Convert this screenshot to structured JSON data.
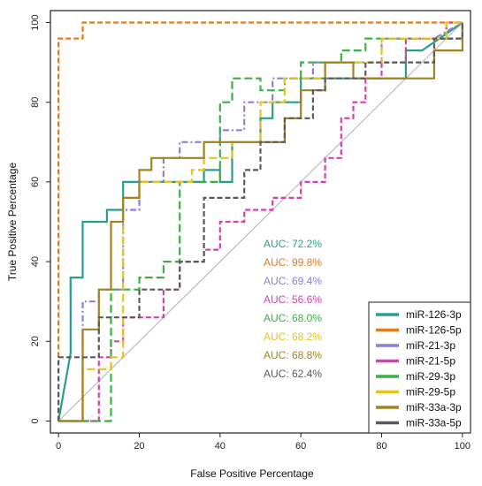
{
  "chart_data": {
    "type": "line",
    "xlabel": "False Positive Percentage",
    "ylabel": "True Positive Percentage",
    "xlim": [
      -2,
      102
    ],
    "ylim": [
      -3,
      103
    ],
    "x_ticks": [
      0,
      20,
      40,
      60,
      80,
      100
    ],
    "y_ticks": [
      0,
      20,
      40,
      60,
      80,
      100
    ],
    "x_tick_labels": [
      "0",
      "20",
      "40",
      "60",
      "80",
      "100"
    ],
    "y_tick_labels": [
      "0",
      "20",
      "40",
      "60",
      "80",
      "100"
    ],
    "legend_position": "bottom-right",
    "series": [
      {
        "name": "miR-126-3p",
        "color": "#2a9d8f",
        "dash": "solid",
        "auc_label": "AUC: 72.2%",
        "points": [
          [
            0,
            0
          ],
          [
            3,
            17
          ],
          [
            3,
            36
          ],
          [
            6,
            36
          ],
          [
            6,
            50
          ],
          [
            12,
            50
          ],
          [
            12,
            53
          ],
          [
            16,
            53
          ],
          [
            16,
            60
          ],
          [
            36,
            60
          ],
          [
            36,
            63
          ],
          [
            40,
            63
          ],
          [
            40,
            60
          ],
          [
            43,
            60
          ],
          [
            43,
            70
          ],
          [
            50,
            70
          ],
          [
            50,
            76
          ],
          [
            53,
            76
          ],
          [
            53,
            80
          ],
          [
            60,
            80
          ],
          [
            60,
            86
          ],
          [
            86,
            86
          ],
          [
            86,
            93
          ],
          [
            90,
            93
          ],
          [
            100,
            100
          ]
        ]
      },
      {
        "name": "miR-126-5p",
        "color": "#e07b1f",
        "dash": "dashed",
        "auc_label": "AUC: 99.8%",
        "points": [
          [
            0,
            0
          ],
          [
            0,
            96
          ],
          [
            6,
            96
          ],
          [
            6,
            100
          ],
          [
            100,
            100
          ]
        ]
      },
      {
        "name": "miR-21-3p",
        "color": "#8b7fd6",
        "dash": "dotdash",
        "auc_label": "AUC: 69.4%",
        "points": [
          [
            0,
            0
          ],
          [
            6,
            0
          ],
          [
            6,
            30
          ],
          [
            10,
            30
          ],
          [
            10,
            33
          ],
          [
            16,
            33
          ],
          [
            16,
            53
          ],
          [
            20,
            53
          ],
          [
            20,
            60
          ],
          [
            26,
            60
          ],
          [
            26,
            66
          ],
          [
            30,
            66
          ],
          [
            30,
            70
          ],
          [
            40,
            70
          ],
          [
            40,
            73
          ],
          [
            46,
            73
          ],
          [
            46,
            80
          ],
          [
            53,
            80
          ],
          [
            53,
            86
          ],
          [
            63,
            86
          ],
          [
            63,
            90
          ],
          [
            80,
            90
          ],
          [
            80,
            96
          ],
          [
            93,
            96
          ],
          [
            100,
            100
          ]
        ]
      },
      {
        "name": "miR-21-5p",
        "color": "#d63fb0",
        "dash": "dashed",
        "auc_label": "AUC: 56.6%",
        "points": [
          [
            0,
            0
          ],
          [
            10,
            0
          ],
          [
            10,
            16
          ],
          [
            13,
            16
          ],
          [
            13,
            20
          ],
          [
            16,
            20
          ],
          [
            16,
            26
          ],
          [
            26,
            26
          ],
          [
            26,
            33
          ],
          [
            30,
            33
          ],
          [
            30,
            40
          ],
          [
            36,
            40
          ],
          [
            36,
            43
          ],
          [
            40,
            43
          ],
          [
            40,
            50
          ],
          [
            46,
            50
          ],
          [
            46,
            53
          ],
          [
            53,
            53
          ],
          [
            53,
            56
          ],
          [
            60,
            56
          ],
          [
            60,
            60
          ],
          [
            66,
            60
          ],
          [
            66,
            66
          ],
          [
            70,
            66
          ],
          [
            70,
            76
          ],
          [
            73,
            76
          ],
          [
            73,
            80
          ],
          [
            76,
            80
          ],
          [
            76,
            86
          ],
          [
            80,
            86
          ],
          [
            80,
            90
          ],
          [
            86,
            90
          ],
          [
            86,
            96
          ],
          [
            96,
            96
          ],
          [
            96,
            100
          ],
          [
            100,
            100
          ]
        ]
      },
      {
        "name": "miR-29-3p",
        "color": "#3cb043",
        "dash": "longdash",
        "auc_label": "AUC: 68.0%",
        "points": [
          [
            0,
            0
          ],
          [
            13,
            0
          ],
          [
            13,
            33
          ],
          [
            20,
            33
          ],
          [
            20,
            36
          ],
          [
            26,
            36
          ],
          [
            26,
            40
          ],
          [
            30,
            40
          ],
          [
            30,
            60
          ],
          [
            40,
            60
          ],
          [
            40,
            80
          ],
          [
            43,
            80
          ],
          [
            43,
            86
          ],
          [
            50,
            86
          ],
          [
            50,
            83
          ],
          [
            56,
            83
          ],
          [
            56,
            86
          ],
          [
            60,
            86
          ],
          [
            60,
            90
          ],
          [
            70,
            90
          ],
          [
            70,
            93
          ],
          [
            76,
            93
          ],
          [
            76,
            96
          ],
          [
            100,
            96
          ],
          [
            100,
            100
          ]
        ]
      },
      {
        "name": "miR-29-5p",
        "color": "#e8c21e",
        "dash": "longdash",
        "auc_label": "AUC: 68.2%",
        "points": [
          [
            0,
            0
          ],
          [
            6,
            0
          ],
          [
            6,
            13
          ],
          [
            13,
            13
          ],
          [
            13,
            16
          ],
          [
            16,
            16
          ],
          [
            16,
            56
          ],
          [
            20,
            56
          ],
          [
            20,
            60
          ],
          [
            33,
            60
          ],
          [
            33,
            63
          ],
          [
            36,
            63
          ],
          [
            36,
            66
          ],
          [
            43,
            66
          ],
          [
            43,
            70
          ],
          [
            50,
            70
          ],
          [
            50,
            80
          ],
          [
            56,
            80
          ],
          [
            56,
            86
          ],
          [
            66,
            86
          ],
          [
            66,
            90
          ],
          [
            80,
            90
          ],
          [
            80,
            96
          ],
          [
            96,
            96
          ],
          [
            96,
            100
          ],
          [
            100,
            100
          ]
        ]
      },
      {
        "name": "miR-33a-3p",
        "color": "#a3821f",
        "dash": "solid",
        "auc_label": "AUC: 68.8%",
        "points": [
          [
            0,
            0
          ],
          [
            6,
            0
          ],
          [
            6,
            23
          ],
          [
            10,
            23
          ],
          [
            10,
            33
          ],
          [
            13,
            33
          ],
          [
            13,
            50
          ],
          [
            16,
            50
          ],
          [
            16,
            56
          ],
          [
            20,
            56
          ],
          [
            20,
            63
          ],
          [
            23,
            63
          ],
          [
            23,
            66
          ],
          [
            36,
            66
          ],
          [
            36,
            70
          ],
          [
            56,
            70
          ],
          [
            56,
            76
          ],
          [
            60,
            76
          ],
          [
            60,
            83
          ],
          [
            66,
            83
          ],
          [
            66,
            90
          ],
          [
            73,
            90
          ],
          [
            73,
            86
          ],
          [
            93,
            86
          ],
          [
            93,
            93
          ],
          [
            100,
            93
          ],
          [
            100,
            100
          ]
        ]
      },
      {
        "name": "miR-33a-5p",
        "color": "#5a5a5a",
        "dash": "dashed",
        "auc_label": "AUC: 62.4%",
        "points": [
          [
            0,
            0
          ],
          [
            0,
            16
          ],
          [
            10,
            16
          ],
          [
            10,
            26
          ],
          [
            20,
            26
          ],
          [
            20,
            33
          ],
          [
            30,
            33
          ],
          [
            30,
            40
          ],
          [
            36,
            40
          ],
          [
            36,
            56
          ],
          [
            46,
            56
          ],
          [
            46,
            63
          ],
          [
            50,
            63
          ],
          [
            50,
            70
          ],
          [
            56,
            70
          ],
          [
            56,
            76
          ],
          [
            63,
            76
          ],
          [
            63,
            83
          ],
          [
            66,
            83
          ],
          [
            66,
            86
          ],
          [
            76,
            86
          ],
          [
            76,
            90
          ],
          [
            93,
            90
          ],
          [
            93,
            96
          ],
          [
            100,
            96
          ],
          [
            100,
            100
          ]
        ]
      }
    ]
  }
}
